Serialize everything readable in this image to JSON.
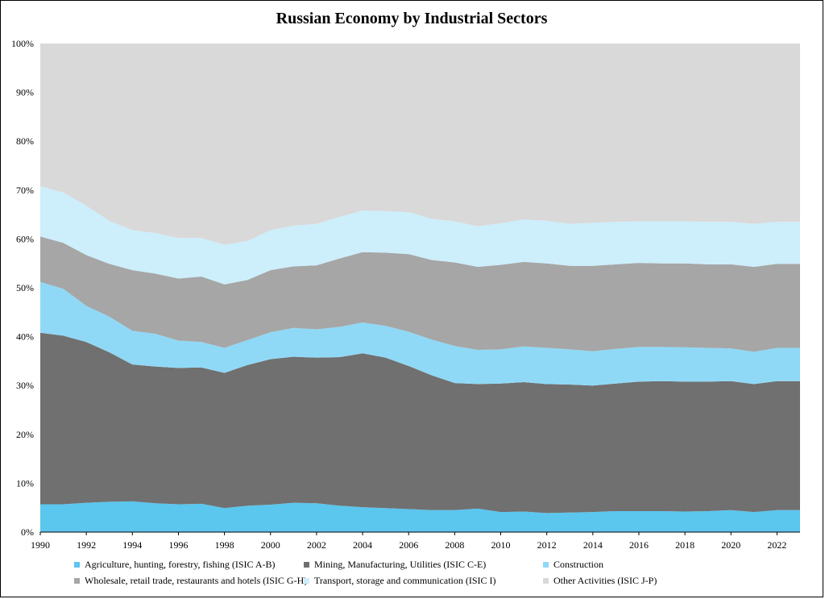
{
  "chart_data": {
    "type": "area",
    "title": "Russian Economy by Industrial Sectors",
    "xlabel": "",
    "ylabel": "",
    "stacked": true,
    "percent_stacked": true,
    "ylim": [
      0,
      100
    ],
    "y_ticks": [
      "0%",
      "10%",
      "20%",
      "30%",
      "40%",
      "50%",
      "60%",
      "70%",
      "80%",
      "90%",
      "100%"
    ],
    "x": [
      1990,
      1991,
      1992,
      1993,
      1994,
      1995,
      1996,
      1997,
      1998,
      1999,
      2000,
      2001,
      2002,
      2003,
      2004,
      2005,
      2006,
      2007,
      2008,
      2009,
      2010,
      2011,
      2012,
      2013,
      2014,
      2015,
      2016,
      2017,
      2018,
      2019,
      2020,
      2021,
      2022,
      2023
    ],
    "x_ticks": [
      1990,
      1992,
      1994,
      1996,
      1998,
      2000,
      2002,
      2004,
      2006,
      2008,
      2010,
      2012,
      2014,
      2016,
      2018,
      2020,
      2022
    ],
    "legend_position": "bottom",
    "series": [
      {
        "name": "Agriculture, hunting, forestry, fishing (ISIC A-B)",
        "color": "#5bc6ee",
        "values": [
          5.7,
          5.7,
          6.0,
          6.2,
          6.3,
          5.9,
          5.7,
          5.8,
          4.9,
          5.4,
          5.6,
          6.0,
          5.9,
          5.4,
          5.1,
          4.9,
          4.7,
          4.5,
          4.5,
          4.8,
          4.1,
          4.2,
          3.9,
          4.0,
          4.1,
          4.3,
          4.3,
          4.3,
          4.2,
          4.3,
          4.5,
          4.1,
          4.5,
          4.5
        ]
      },
      {
        "name": "Mining, Manufacturing, Utilities (ISIC C-E)",
        "color": "#707070",
        "values": [
          35.1,
          34.5,
          32.9,
          30.6,
          28.0,
          28.0,
          27.9,
          27.9,
          27.7,
          28.8,
          29.8,
          29.9,
          29.8,
          30.4,
          31.5,
          30.8,
          29.3,
          27.6,
          26.0,
          25.5,
          26.3,
          26.5,
          26.4,
          26.2,
          25.9,
          26.1,
          26.5,
          26.6,
          26.6,
          26.5,
          26.4,
          26.2,
          26.4,
          26.4
        ]
      },
      {
        "name": "Construction",
        "color": "#8fd9f6",
        "values": [
          10.4,
          9.6,
          7.4,
          7.3,
          6.9,
          6.7,
          5.6,
          5.2,
          5.1,
          5.1,
          5.5,
          5.9,
          5.8,
          6.2,
          6.3,
          6.5,
          7.0,
          7.3,
          7.6,
          7.0,
          7.0,
          7.3,
          7.4,
          7.2,
          7.0,
          7.1,
          7.1,
          7.0,
          7.0,
          6.9,
          6.7,
          6.6,
          6.8,
          6.8
        ]
      },
      {
        "name": "Wholesale, retail trade, restaurants and hotels (ISIC G-H)",
        "color": "#a6a6a6",
        "values": [
          9.3,
          9.4,
          10.4,
          10.8,
          12.4,
          12.3,
          12.7,
          13.4,
          13.0,
          12.3,
          12.7,
          12.6,
          13.1,
          14.0,
          14.4,
          15.0,
          15.9,
          16.3,
          17.1,
          17.0,
          17.3,
          17.3,
          17.3,
          17.1,
          17.5,
          17.3,
          17.2,
          17.1,
          17.2,
          17.1,
          17.2,
          17.4,
          17.2,
          17.2
        ]
      },
      {
        "name": "Transport, storage and communication (ISIC I)",
        "color": "#cdeefb",
        "values": [
          10.3,
          10.3,
          10.1,
          8.8,
          8.2,
          8.3,
          8.3,
          7.9,
          8.1,
          8.0,
          8.2,
          8.3,
          8.5,
          8.5,
          8.5,
          8.5,
          8.6,
          8.4,
          8.4,
          8.3,
          8.5,
          8.7,
          8.7,
          8.6,
          8.8,
          8.7,
          8.5,
          8.6,
          8.6,
          8.7,
          8.7,
          8.8,
          8.6,
          8.6
        ]
      },
      {
        "name": "Other Activities (ISIC J-P)",
        "color": "#d9d9d9",
        "values": [
          29.2,
          30.5,
          33.2,
          36.3,
          38.2,
          38.8,
          39.8,
          39.8,
          41.2,
          40.4,
          38.2,
          37.3,
          36.9,
          35.5,
          34.2,
          34.3,
          34.5,
          35.9,
          36.4,
          37.4,
          36.8,
          36.0,
          36.3,
          36.9,
          36.7,
          36.5,
          36.4,
          36.4,
          36.4,
          36.5,
          36.5,
          36.9,
          36.5,
          36.5
        ]
      }
    ]
  }
}
